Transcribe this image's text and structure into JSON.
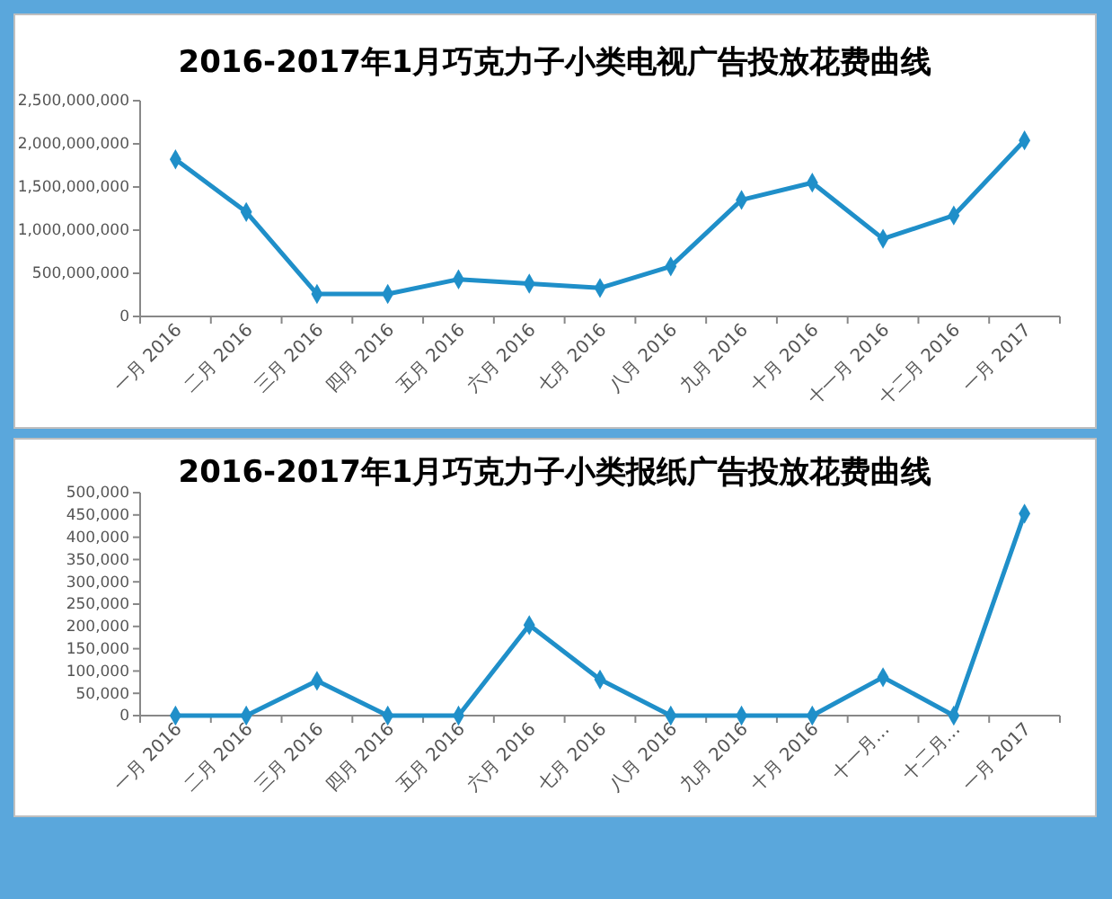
{
  "chart_data": [
    {
      "type": "line",
      "title": "2016-2017年1月巧克力子小类电视广告投放花费曲线",
      "categories": [
        "一月 2016",
        "二月 2016",
        "三月 2016",
        "四月 2016",
        "五月 2016",
        "六月 2016",
        "七月 2016",
        "八月 2016",
        "九月 2016",
        "十月 2016",
        "十一月 2016",
        "十二月 2016",
        "一月 2017"
      ],
      "series": [
        {
          "color": "#1f8fc9",
          "values": [
            1820000000,
            1210000000,
            260000000,
            260000000,
            430000000,
            380000000,
            330000000,
            580000000,
            1350000000,
            1550000000,
            900000000,
            1170000000,
            2040000000
          ]
        }
      ],
      "ylim": [
        0,
        2500000000
      ],
      "yticks": [
        {
          "value": 0,
          "label": "0"
        },
        {
          "value": 500000000,
          "label": "500,000,000"
        },
        {
          "value": 1000000000,
          "label": "1,000,000,000"
        },
        {
          "value": 1500000000,
          "label": "1,500,000,000"
        },
        {
          "value": 2000000000,
          "label": "2,000,000,000"
        },
        {
          "value": 2500000000,
          "label": "2,500,000,000"
        }
      ],
      "marker": "diamond"
    },
    {
      "type": "line",
      "title": "2016-2017年1月巧克力子小类报纸广告投放花费曲线",
      "categories": [
        "一月 2016",
        "二月 2016",
        "三月 2016",
        "四月 2016",
        "五月 2016",
        "六月 2016",
        "七月 2016",
        "八月 2016",
        "九月 2016",
        "十月 2016",
        "十一月…",
        "十二月…",
        "一月 2017"
      ],
      "series": [
        {
          "color": "#1f8fc9",
          "values": [
            0,
            0,
            78000,
            0,
            0,
            203000,
            81000,
            0,
            0,
            0,
            86000,
            0,
            453000
          ]
        }
      ],
      "ylim": [
        0,
        500000
      ],
      "yticks": [
        {
          "value": 0,
          "label": "0"
        },
        {
          "value": 50000,
          "label": "50,000"
        },
        {
          "value": 100000,
          "label": "100,000"
        },
        {
          "value": 150000,
          "label": "150,000"
        },
        {
          "value": 200000,
          "label": "200,000"
        },
        {
          "value": 250000,
          "label": "250,000"
        },
        {
          "value": 300000,
          "label": "300,000"
        },
        {
          "value": 350000,
          "label": "350,000"
        },
        {
          "value": 400000,
          "label": "400,000"
        },
        {
          "value": 450000,
          "label": "450,000"
        },
        {
          "value": 500000,
          "label": "500,000"
        }
      ],
      "marker": "diamond"
    }
  ]
}
